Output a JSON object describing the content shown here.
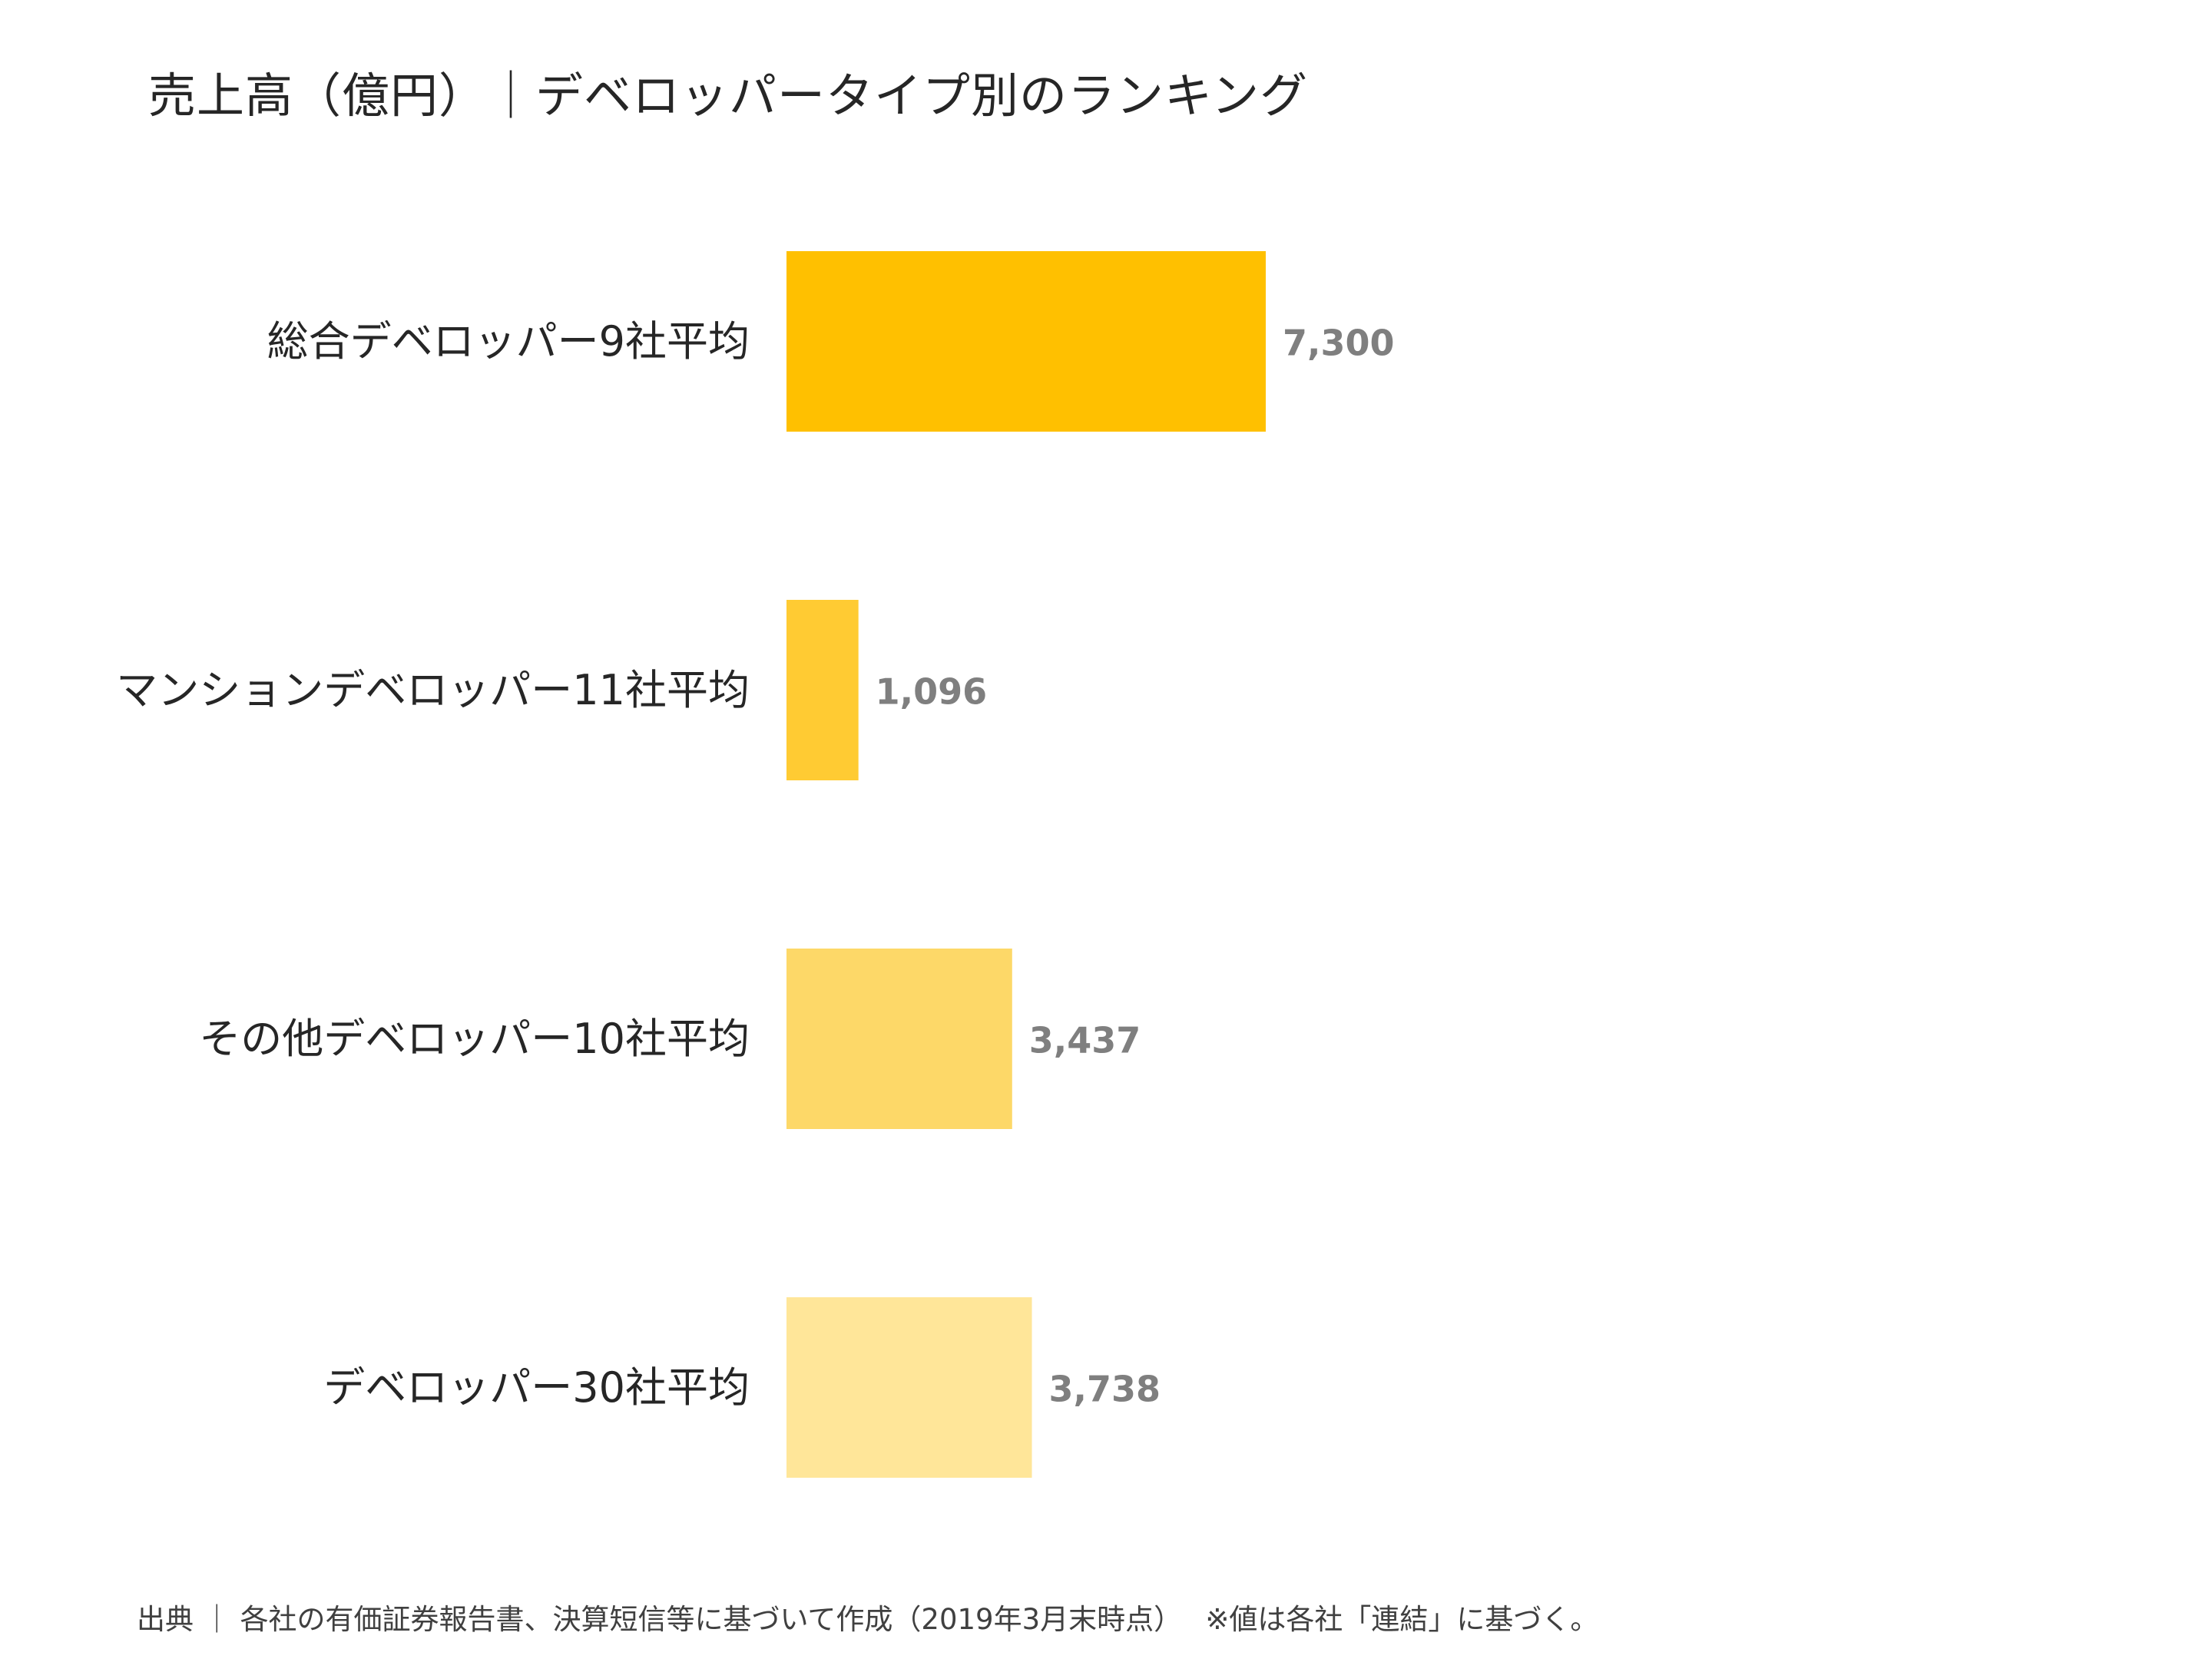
{
  "chart_data": {
    "type": "bar",
    "orientation": "horizontal",
    "title": "売上高（億円）｜デベロッパータイプ別のランキング",
    "categories": [
      "総合デベロッパー9社平均",
      "マンションデベロッパー11社平均",
      "その他デベロッパー10社平均",
      "デベロッパー30社平均"
    ],
    "values": [
      7300,
      1096,
      3437,
      3738
    ],
    "value_labels": [
      "7,300",
      "1,096",
      "3,437",
      "3,738"
    ],
    "colors": [
      "#FFC000",
      "#FFCB33",
      "#FDD868",
      "#FFE699"
    ],
    "xlim": [
      0,
      20000
    ],
    "grid": false,
    "legend": "none",
    "xlabel": "",
    "ylabel": ""
  },
  "footnote": "出典 ｜ 各社の有価証券報告書、決算短信等に基づいて作成（2019年3月末時点）　 ※値は各社「連結」に基づく。"
}
